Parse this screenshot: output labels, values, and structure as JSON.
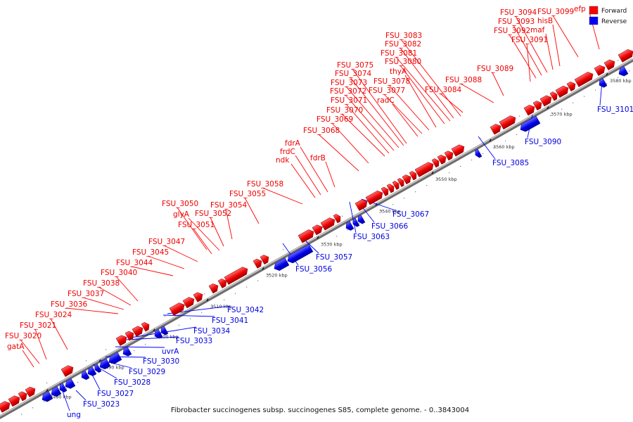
{
  "caption": "Fibrobacter succinogenes subsp. succinogenes S85, complete genome. - 0..3843004",
  "legend": [
    {
      "label": "Forward",
      "color": "#ff0000"
    },
    {
      "label": "Reverse",
      "color": "#0000ff"
    }
  ],
  "colors": {
    "forward": "#ff0000",
    "reverse": "#0000ff",
    "axis": "#999999"
  },
  "ticks": [
    "3480 kbp",
    "3490 kbp",
    "3500 kbp",
    "3510 kbp",
    "3520 kbp",
    "3530 kbp",
    "3540 kbp",
    "3550 kbp",
    "3560 kbp",
    "3570 kbp",
    "3580 kbp"
  ],
  "forward_labels": [
    "gatA",
    "FSU_3020",
    "FSU_3021",
    "FSU_3024",
    "FSU_3036",
    "FSU_3037",
    "FSU_3038",
    "FSU_3040",
    "FSU_3044",
    "FSU_3045",
    "FSU_3047",
    "FSU_3051",
    "glyA",
    "FSU_3050",
    "FSU_3052",
    "FSU_3054",
    "FSU_3055",
    "FSU_3058",
    "ndk",
    "frdC",
    "fdrA",
    "fdrB",
    "FSU_3068",
    "FSU_3069",
    "FSU_3070",
    "FSU_3071",
    "FSU_3072",
    "FSU_3073",
    "FSU_3074",
    "FSU_3075",
    "radC",
    "FSU_3077",
    "FSU_3078",
    "thyA",
    "FSU_3080",
    "FSU_3081",
    "FSU_3082",
    "FSU_3083",
    "FSU_3084",
    "FSU_3088",
    "FSU_3089",
    "FSU_3091",
    "FSU_3092",
    "FSU_3093",
    "FSU_3094",
    "maf",
    "hisB",
    "FSU_3099",
    "efp"
  ],
  "reverse_labels": [
    "ung",
    "FSU_3023",
    "FSU_3027",
    "FSU_3028",
    "FSU_3029",
    "FSU_3030",
    "uvrA",
    "FSU_3033",
    "FSU_3034",
    "FSU_3041",
    "FSU_3042",
    "FSU_3056",
    "FSU_3057",
    "FSU_3063",
    "FSU_3066",
    "FSU_3067",
    "FSU_3085",
    "FSU_3090",
    "FSU_3101"
  ]
}
